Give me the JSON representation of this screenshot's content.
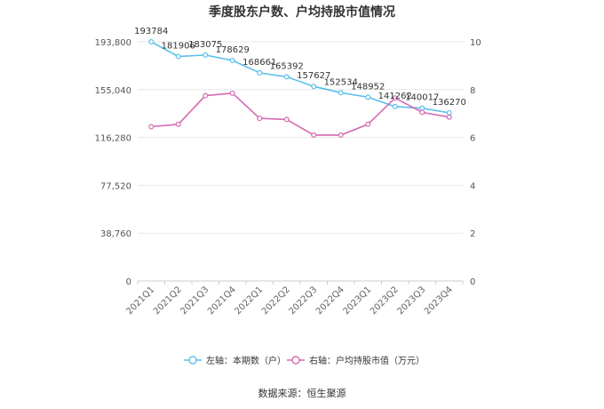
{
  "chart_data": {
    "type": "line",
    "title": "季度股东户数、户均持股市值情况",
    "categories": [
      "2021Q1",
      "2021Q2",
      "2021Q3",
      "2021Q4",
      "2022Q1",
      "2022Q2",
      "2022Q3",
      "2022Q4",
      "2023Q1",
      "2023Q2",
      "2023Q3",
      "2023Q4"
    ],
    "left_axis": {
      "ticks": [
        "0",
        "38,760",
        "77,520",
        "116,280",
        "155,040",
        "193,800"
      ],
      "tick_values": [
        0,
        38760,
        77520,
        116280,
        155040,
        193800
      ],
      "range": [
        0,
        193800
      ]
    },
    "right_axis": {
      "ticks": [
        "0",
        "2",
        "4",
        "6",
        "8",
        "10"
      ],
      "tick_values": [
        0,
        2,
        4,
        6,
        8,
        10
      ],
      "range": [
        0,
        10
      ]
    },
    "series": [
      {
        "name": "左轴：本期数（户）",
        "axis": "left",
        "color": "#5bc0eb",
        "values": [
          193784,
          181906,
          183075,
          178629,
          168661,
          165392,
          157627,
          152534,
          148952,
          141262,
          140017,
          136270
        ],
        "labels": [
          "193784",
          "181906",
          "183075",
          "178629",
          "168661",
          "165392",
          "157627",
          "152534",
          "148952",
          "141262",
          "140017",
          "136270"
        ]
      },
      {
        "name": "右轴：户均持股市值（万元）",
        "axis": "right",
        "color": "#d46ab1",
        "values": [
          6.45,
          6.55,
          7.75,
          7.85,
          6.8,
          6.75,
          6.1,
          6.1,
          6.55,
          7.65,
          7.05,
          6.85
        ]
      }
    ],
    "grid": true,
    "legend_position": "bottom"
  },
  "source": "数据来源：恒生聚源"
}
